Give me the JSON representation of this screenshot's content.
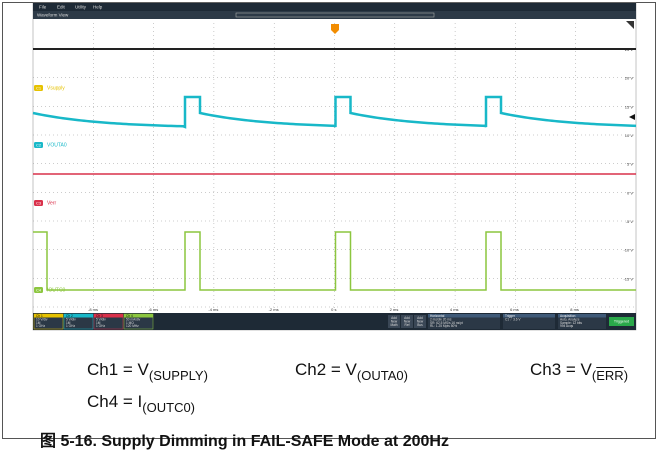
{
  "menu": [
    "File",
    "Edit",
    "Utility",
    "Help"
  ],
  "window_title": "Waveform View",
  "channels": [
    {
      "label": "C1",
      "name": "Vsupply"
    },
    {
      "label": "C2",
      "name": "VOUTA0"
    },
    {
      "label": "C3",
      "name": "Verr"
    },
    {
      "label": "C4",
      "name": "IOUTC0"
    }
  ],
  "right_labels": [
    "25 V",
    "20 V",
    "15 V",
    "10 V",
    "5 V",
    "0 V",
    "-5 V",
    "-10 V",
    "-15 V"
  ],
  "time_labels": [
    "-8 ms",
    "-6 ms",
    "-4 ms",
    "-2 ms",
    "0 s",
    "2 ms",
    "4 ms",
    "6 ms",
    "8 ms"
  ],
  "panel": {
    "channel_boxes": [
      {
        "title": "Ch 1",
        "lines": [
          "10 V/div",
          "1M",
          "1 GHz"
        ]
      },
      {
        "title": "Ch 2",
        "lines": [
          "5 V/div",
          "1M",
          "1 GHz"
        ]
      },
      {
        "title": "Ch 3",
        "lines": [
          "5 V/div",
          "1M",
          "1 GHz"
        ]
      },
      {
        "title": "Ch 4",
        "lines": [
          "50 mA/div",
          "1 MΩ",
          "120 MHz"
        ]
      }
    ],
    "add_buttons": [
      [
        "Add",
        "New",
        "Math"
      ],
      [
        "Add",
        "New",
        "Ref"
      ],
      [
        "Add",
        "New",
        "Bus"
      ]
    ],
    "horizontal": {
      "title": "Horizontal",
      "lines": [
        "2 ms/div   20 ms",
        "SR: 62.5 MS/s  16 ns/pt",
        "RL: 1.25 Mpts  50%"
      ]
    },
    "trigger": {
      "title": "Trigger",
      "lines": [
        "C1  ⟋  3.6 V"
      ]
    },
    "acquisition": {
      "title": "Acquisition",
      "lines": [
        "Auto,  Analyze",
        "Sample: 12 bits",
        "994 Acqs"
      ]
    },
    "status": "Triggered"
  },
  "legend": {
    "ch1": {
      "prefix": "Ch1 = V",
      "sub": "(SUPPLY)"
    },
    "ch2": {
      "prefix": "Ch2 = V",
      "sub": "(OUTA0)"
    },
    "ch3": {
      "prefix": "Ch3 = V",
      "sub_open": "(",
      "sub_bar": "ERR",
      "sub_close": ")"
    },
    "ch4": {
      "prefix": "Ch4 = I",
      "sub": "(OUTC0)"
    }
  },
  "caption": "图 5-16. Supply Dimming in FAIL-SAFE Mode at 200Hz"
}
